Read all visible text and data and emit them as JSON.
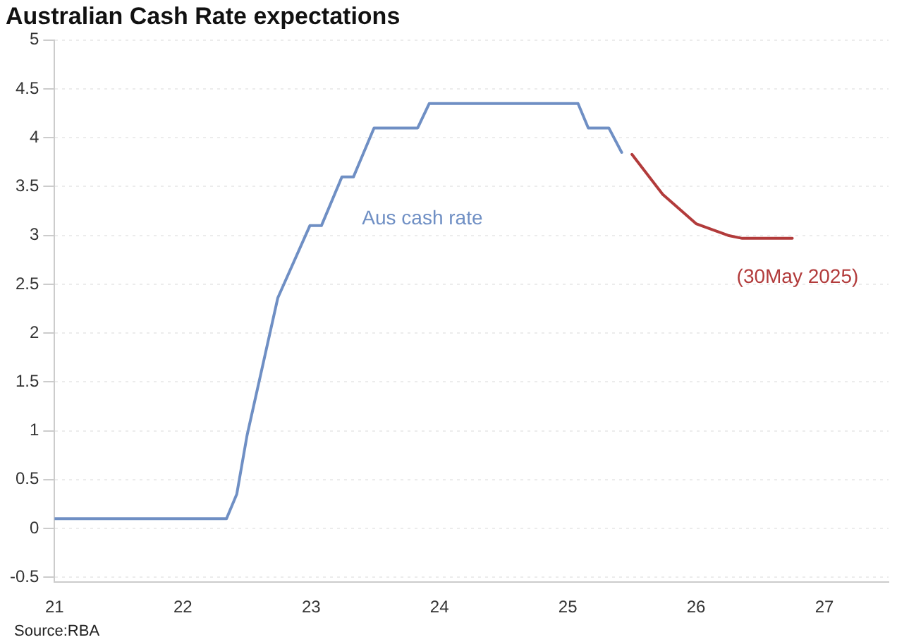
{
  "chart_data": {
    "type": "line",
    "title": "Australian Cash Rate expectations",
    "xlim": [
      21,
      27.5
    ],
    "xticks": [
      21,
      22,
      23,
      24,
      25,
      26,
      27
    ],
    "ylim": [
      -0.55,
      5
    ],
    "yticks": [
      -0.5,
      0,
      0.5,
      1,
      1.5,
      2,
      2.5,
      3,
      3.5,
      4,
      4.5,
      5
    ],
    "grid": "y",
    "legend": false,
    "marker": "none",
    "line_style": "solid",
    "series": [
      {
        "name": "Aus cash rate",
        "color": "#6f8fc4",
        "x": [
          21,
          22.34,
          22.42,
          22.5,
          22.74,
          22.99,
          23.08,
          23.24,
          23.33,
          23.49,
          23.83,
          23.92,
          25.08,
          25.16,
          25.32,
          25.42
        ],
        "values": [
          0.1,
          0.1,
          0.35,
          0.95,
          2.36,
          3.1,
          3.1,
          3.6,
          3.6,
          4.1,
          4.1,
          4.35,
          4.35,
          4.1,
          4.1,
          3.85
        ]
      },
      {
        "name": "(30May 2025)",
        "color": "#b23b3b",
        "x": [
          25.5,
          25.74,
          26.0,
          26.25,
          26.36,
          26.75
        ],
        "values": [
          3.83,
          3.42,
          3.12,
          3.0,
          2.97,
          2.97
        ]
      }
    ],
    "annotations": [
      "Source:RBA"
    ]
  }
}
